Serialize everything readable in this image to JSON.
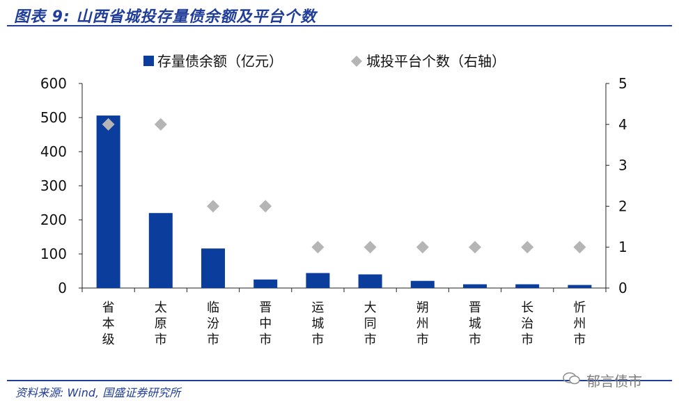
{
  "header": {
    "title": "图表 9:  山西省城投存量债余额及平台个数"
  },
  "footer": {
    "source": "资料来源: Wind, 国盛证券研究所",
    "watermark": "郁言债市"
  },
  "colors": {
    "bar": "#0b3d9c",
    "marker": "#b5b5b5",
    "accent": "#1f3d99"
  },
  "chart_data": {
    "type": "bar",
    "categories": [
      "省本级",
      "太原市",
      "临汾市",
      "晋中市",
      "运城市",
      "大同市",
      "朔州市",
      "晋城市",
      "长治市",
      "忻州市"
    ],
    "series": [
      {
        "name": "存量债余额（亿元）",
        "type": "bar",
        "axis": "left",
        "values": [
          506,
          220,
          116,
          25,
          44,
          40,
          21,
          11,
          11,
          9
        ]
      },
      {
        "name": "城投平台个数（右轴）",
        "type": "scatter",
        "axis": "right",
        "values": [
          4,
          4,
          2,
          2,
          1,
          1,
          1,
          1,
          1,
          1
        ]
      }
    ],
    "left_axis": {
      "ylim": [
        0,
        600
      ],
      "ticks": [
        "0",
        "100",
        "200",
        "300",
        "400",
        "500",
        "600"
      ]
    },
    "right_axis": {
      "ylim": [
        0,
        5
      ],
      "ticks": [
        "0",
        "1",
        "2",
        "3",
        "4",
        "5"
      ]
    },
    "legend_position": "top",
    "grid": false
  }
}
